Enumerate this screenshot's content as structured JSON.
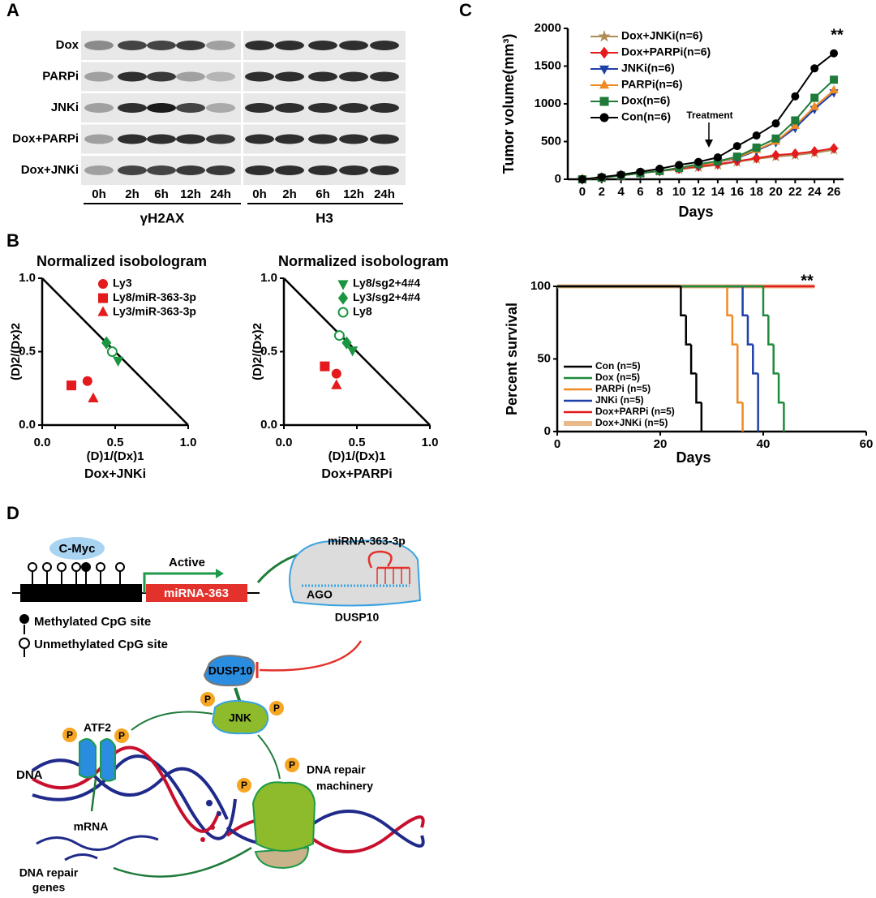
{
  "panel_labels": [
    "A",
    "B",
    "C",
    "D"
  ],
  "blot": {
    "row_labels": [
      "Dox",
      "PARPi",
      "JNKi",
      "Dox+PARPi",
      "Dox+JNKi"
    ],
    "time_labels": [
      "0h",
      "2h",
      "6h",
      "12h",
      "24h"
    ],
    "groups": [
      "γH2AX",
      "H3"
    ]
  },
  "chart_data": [
    {
      "type": "scatter",
      "title": "Normalized isobologram",
      "xlabel": "(D)1/(Dx)1",
      "ylabel": "(D)2/(Dx)2",
      "caption": "Dox+JNKi",
      "xlim": [
        0,
        1
      ],
      "ylim": [
        0,
        1
      ],
      "xticks": [
        {
          "value": 0,
          "label": "0.0"
        },
        {
          "value": 0.5,
          "label": "0.5"
        },
        {
          "value": 1,
          "label": "1.0"
        }
      ],
      "yticks": [
        {
          "value": 0,
          "label": "0.0"
        },
        {
          "value": 0.5,
          "label": "0.5"
        },
        {
          "value": 1,
          "label": "1.0"
        }
      ],
      "series": [
        {
          "name": "Ly3",
          "color": "#e41a1c",
          "marker": "circle",
          "open": false,
          "x": [
            0.31
          ],
          "values": [
            0.3
          ]
        },
        {
          "name": "Ly8/miR-363-3p",
          "color": "#e41a1c",
          "marker": "square",
          "open": false,
          "x": [
            0.2
          ],
          "values": [
            0.27
          ]
        },
        {
          "name": "Ly3/miR-363-3p",
          "color": "#e41a1c",
          "marker": "triangle",
          "open": false,
          "x": [
            0.35
          ],
          "values": [
            0.18
          ]
        },
        {
          "color": "#1a9641",
          "marker": "diamond",
          "open": false,
          "x": [
            0.44
          ],
          "values": [
            0.56
          ]
        },
        {
          "color": "#1a9641",
          "marker": "circle",
          "open": true,
          "x": [
            0.48
          ],
          "values": [
            0.5
          ]
        },
        {
          "color": "#1a9641",
          "marker": "triangle-down",
          "open": false,
          "x": [
            0.52
          ],
          "values": [
            0.44
          ]
        }
      ]
    },
    {
      "type": "scatter",
      "title": "Normalized isobologram",
      "xlabel": "(D)1/(Dx)1",
      "ylabel": "(D)2/(Dx)2",
      "caption": "Dox+PARPi",
      "xlim": [
        0,
        1
      ],
      "ylim": [
        0,
        1
      ],
      "xticks": [
        {
          "value": 0,
          "label": "0.0"
        },
        {
          "value": 0.5,
          "label": "0.5"
        },
        {
          "value": 1,
          "label": "1.0"
        }
      ],
      "yticks": [
        {
          "value": 0,
          "label": "0.0"
        },
        {
          "value": 0.5,
          "label": "0.5"
        },
        {
          "value": 1,
          "label": "1.0"
        }
      ],
      "series": [
        {
          "name": "Ly8/sg2+4#4",
          "color": "#1a9641",
          "marker": "triangle-down",
          "open": false,
          "x": [
            0.47
          ],
          "values": [
            0.51
          ]
        },
        {
          "name": "Ly3/sg2+4#4",
          "color": "#1a9641",
          "marker": "diamond",
          "open": false,
          "x": [
            0.43
          ],
          "values": [
            0.56
          ]
        },
        {
          "name": "Ly8",
          "color": "#1a9641",
          "marker": "circle",
          "open": true,
          "x": [
            0.38
          ],
          "values": [
            0.61
          ]
        },
        {
          "color": "#e41a1c",
          "marker": "square",
          "open": false,
          "x": [
            0.28
          ],
          "values": [
            0.4
          ]
        },
        {
          "color": "#e41a1c",
          "marker": "circle",
          "open": false,
          "x": [
            0.36
          ],
          "values": [
            0.35
          ]
        },
        {
          "color": "#e41a1c",
          "marker": "triangle",
          "open": false,
          "x": [
            0.36
          ],
          "values": [
            0.27
          ]
        }
      ]
    },
    {
      "type": "line",
      "xlabel": "Days",
      "ylabel": "Tumor volume(mm³)",
      "annotations": [
        "Treatment",
        "**"
      ],
      "x": [
        0,
        2,
        4,
        6,
        8,
        10,
        12,
        14,
        16,
        18,
        20,
        22,
        24,
        26
      ],
      "xlim": [
        -1.5,
        27
      ],
      "ylim": [
        0,
        2000
      ],
      "xticks": [
        0,
        2,
        4,
        6,
        8,
        10,
        12,
        14,
        16,
        18,
        20,
        22,
        24,
        26
      ],
      "yticks": [
        0,
        500,
        1000,
        1500,
        2000
      ],
      "series": [
        {
          "name": "Dox+JNKi(n=6)",
          "color": "#b08d57",
          "marker": "star",
          "values": [
            0,
            20,
            50,
            80,
            110,
            130,
            160,
            190,
            230,
            270,
            300,
            320,
            350,
            390
          ]
        },
        {
          "name": "Dox+PARPi(n=6)",
          "color": "#e41a1c",
          "marker": "diamond",
          "values": [
            0,
            20,
            50,
            80,
            110,
            140,
            170,
            200,
            240,
            280,
            320,
            340,
            370,
            410
          ]
        },
        {
          "name": "JNKi(n=6)",
          "color": "#1f3fa8",
          "marker": "triangle-down",
          "values": [
            0,
            20,
            50,
            80,
            110,
            150,
            190,
            230,
            280,
            380,
            490,
            680,
            930,
            1150
          ]
        },
        {
          "name": "PARPi(n=6)",
          "color": "#f08a24",
          "marker": "triangle",
          "values": [
            0,
            20,
            50,
            80,
            110,
            150,
            190,
            230,
            290,
            390,
            500,
            710,
            960,
            1180
          ]
        },
        {
          "name": "Dox(n=6)",
          "color": "#1e7b3a",
          "marker": "square",
          "values": [
            0,
            20,
            50,
            80,
            110,
            150,
            200,
            240,
            300,
            420,
            540,
            780,
            1080,
            1320
          ]
        },
        {
          "name": "Con(n=6)",
          "color": "#000000",
          "marker": "circle",
          "values": [
            0,
            30,
            60,
            100,
            140,
            190,
            230,
            290,
            440,
            580,
            740,
            1100,
            1470,
            1670
          ]
        }
      ]
    },
    {
      "type": "line",
      "drawstyle": "steps-post",
      "xlabel": "Days",
      "ylabel": "Percent survival",
      "annotations": [
        "**"
      ],
      "xlim": [
        0,
        60
      ],
      "ylim": [
        0,
        100
      ],
      "xticks": [
        0,
        20,
        40,
        60
      ],
      "yticks": [
        0,
        50,
        100
      ],
      "series": [
        {
          "name": "Con (n=5)",
          "color": "#000000",
          "x": [
            0,
            24,
            25,
            26,
            27,
            28
          ],
          "values": [
            100,
            80,
            60,
            40,
            20,
            0
          ]
        },
        {
          "name": "Dox (n=5)",
          "color": "#1e8a3a",
          "x": [
            0,
            40,
            41,
            42,
            43,
            44
          ],
          "values": [
            100,
            80,
            60,
            40,
            20,
            0
          ]
        },
        {
          "name": "PARPi (n=5)",
          "color": "#f08a24",
          "x": [
            0,
            33,
            34,
            35,
            36
          ],
          "values": [
            100,
            80,
            60,
            20,
            0
          ]
        },
        {
          "name": "JNKi (n=5)",
          "color": "#1f3fa8",
          "x": [
            0,
            36,
            37,
            38,
            39
          ],
          "values": [
            100,
            80,
            60,
            40,
            0
          ]
        },
        {
          "name": "Dox+PARPi (n=5)",
          "color": "#e41a1c",
          "x": [
            0,
            50
          ],
          "values": [
            100,
            100
          ]
        },
        {
          "name": "Dox+JNKi (n=5)",
          "color": "#e8b98a",
          "x": [
            0,
            50
          ],
          "values": [
            100,
            100
          ]
        }
      ]
    }
  ],
  "diagram": {
    "c_myc": "C-Myc",
    "active": "Active",
    "mirna_gene": "miRNA-363",
    "mirna_mature": "miRNA-363-3p",
    "ago": "AGO",
    "dusp10_target": "DUSP10",
    "methylated": "Methylated CpG site",
    "unmethylated": "Unmethylated CpG site",
    "dusp10": "DUSP10",
    "phospho": "P",
    "jnk": "JNK",
    "atf2": "ATF2",
    "dna": "DNA",
    "mrna": "mRNA",
    "repair_genes": [
      "DNA repair",
      "genes"
    ],
    "machinery": [
      "DNA repair",
      "machinery"
    ]
  }
}
